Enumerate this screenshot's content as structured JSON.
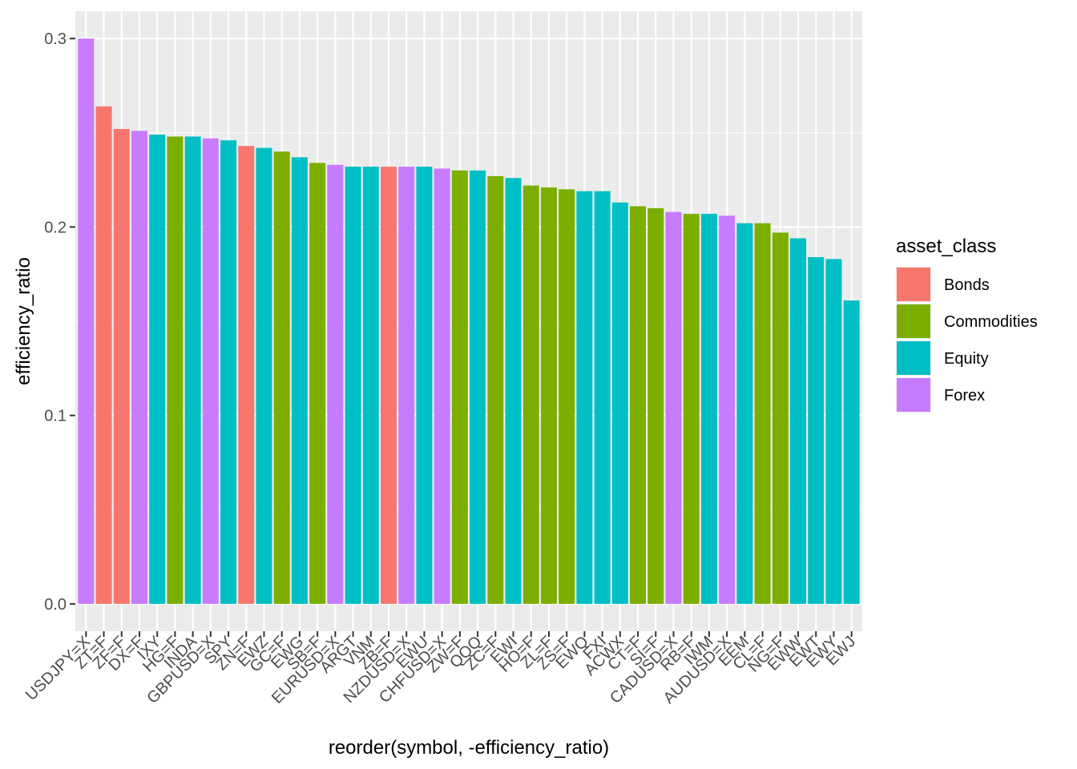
{
  "chart_data": {
    "type": "bar",
    "title": "",
    "xlabel": "reorder(symbol, -efficiency_ratio)",
    "ylabel": "efficiency_ratio",
    "ylim": [
      -0.0145,
      0.3145
    ],
    "yticks": [
      0.0,
      0.1,
      0.2,
      0.3
    ],
    "ytick_labels": [
      "0.0",
      "0.1",
      "0.2",
      "0.3"
    ],
    "grid": true,
    "legend": {
      "title": "asset_class",
      "position": "right",
      "entries": [
        {
          "label": "Bonds",
          "color": "#F8766D"
        },
        {
          "label": "Commodities",
          "color": "#7CAE00"
        },
        {
          "label": "Equity",
          "color": "#00BFC4"
        },
        {
          "label": "Forex",
          "color": "#C77CFF"
        }
      ]
    },
    "categories": [
      "USDJPY=X",
      "ZT=F",
      "ZF=F",
      "DX=F",
      "IXY",
      "HG=F",
      "INDA",
      "GBPUSD=X",
      "SPY",
      "ZN=F",
      "EWZ",
      "GC=F",
      "EWG",
      "SB=F",
      "EURUSD=X",
      "ARGT",
      "VNM",
      "ZB=F",
      "NZDUSD=X",
      "EWU",
      "CHFUSD=X",
      "ZW=F",
      "QQQ",
      "ZC=F",
      "EWI",
      "HO=F",
      "ZL=F",
      "ZS=F",
      "EWQ",
      "FXI",
      "ACWX",
      "CT=F",
      "SI=F",
      "CADUSD=X",
      "RB=F",
      "IWM",
      "AUDUSD=X",
      "EEM",
      "CL=F",
      "NG=F",
      "EWW",
      "EWT",
      "EWY",
      "EWJ"
    ],
    "values": [
      0.3,
      0.264,
      0.252,
      0.251,
      0.249,
      0.248,
      0.248,
      0.247,
      0.246,
      0.243,
      0.242,
      0.24,
      0.237,
      0.234,
      0.233,
      0.232,
      0.232,
      0.232,
      0.232,
      0.232,
      0.231,
      0.23,
      0.23,
      0.227,
      0.226,
      0.222,
      0.221,
      0.22,
      0.219,
      0.219,
      0.213,
      0.211,
      0.21,
      0.208,
      0.207,
      0.207,
      0.206,
      0.202,
      0.202,
      0.197,
      0.194,
      0.184,
      0.183,
      0.161
    ],
    "asset_class": [
      "Forex",
      "Bonds",
      "Bonds",
      "Forex",
      "Equity",
      "Commodities",
      "Equity",
      "Forex",
      "Equity",
      "Bonds",
      "Equity",
      "Commodities",
      "Equity",
      "Commodities",
      "Forex",
      "Equity",
      "Equity",
      "Bonds",
      "Forex",
      "Equity",
      "Forex",
      "Commodities",
      "Equity",
      "Commodities",
      "Equity",
      "Commodities",
      "Commodities",
      "Commodities",
      "Equity",
      "Equity",
      "Equity",
      "Commodities",
      "Commodities",
      "Forex",
      "Commodities",
      "Equity",
      "Forex",
      "Equity",
      "Commodities",
      "Commodities",
      "Equity",
      "Equity",
      "Equity",
      "Equity"
    ],
    "colors": {
      "panel_background": "#EBEBEB",
      "grid_major": "#FFFFFF",
      "tick_text": "#4D4D4D",
      "tick_mark": "#333333"
    }
  }
}
